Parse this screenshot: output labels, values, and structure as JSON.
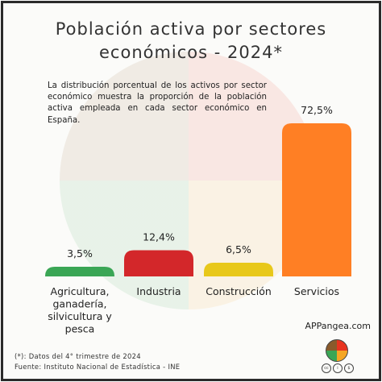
{
  "title_lines": [
    "Población activa por sectores",
    "económicos - 2024*"
  ],
  "description": "La distribución porcentual de los activos por sector económico muestra la proporción de la población activa empleada en cada sector económico en España.",
  "brand": "APPangea.com",
  "footnotes": [
    "(*): Datos del 4° trimestre de 2024",
    "Fuente: Instituto Nacional de Estadística - INE"
  ],
  "license_icons": [
    "cc-icon",
    "by-icon",
    "nc-icon"
  ],
  "chart_data": {
    "type": "bar",
    "categories": [
      [
        "Agricultura,",
        "ganadería,",
        "silvicultura y",
        "pesca"
      ],
      [
        "Industria"
      ],
      [
        "Construcción"
      ],
      [
        "Servicios"
      ]
    ],
    "values": [
      3.5,
      12.4,
      6.5,
      72.5
    ],
    "value_labels": [
      "3,5%",
      "12,4%",
      "6,5%",
      "72,5%"
    ],
    "colors": [
      "#3aa655",
      "#d3272a",
      "#e8c81a",
      "#ff7f24"
    ],
    "ylim": [
      0,
      72.5
    ],
    "grid": false
  }
}
